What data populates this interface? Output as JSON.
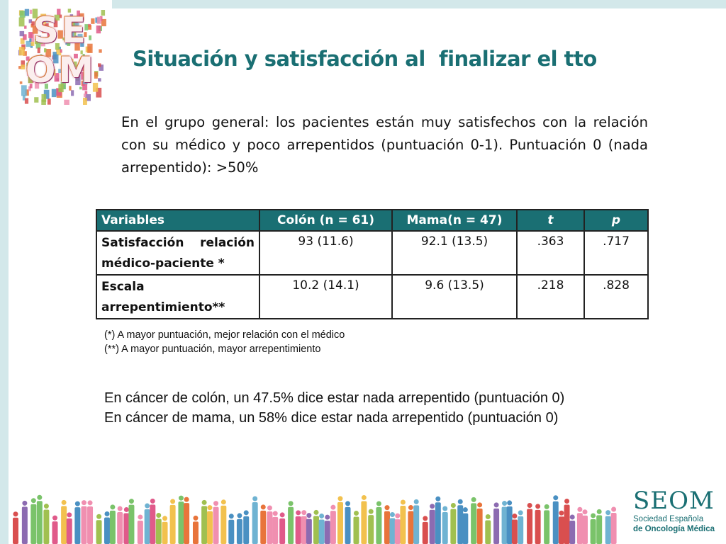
{
  "slide": {
    "title": "Situación y satisfacción al  finalizar el tto",
    "intro": "En el grupo general: los pacientes están muy satisfechos con la relación con su médico y poco arrepentidos (puntuación 0-1). Puntuación 0 (nada arrepentido): >50%"
  },
  "logo_top": {
    "text_line1": "SE",
    "text_line2": "OM"
  },
  "table": {
    "headers": [
      "Variables",
      "Colón (n = 61)",
      "Mama(n = 47)",
      "t",
      "p"
    ],
    "rows": [
      {
        "label": "Satisfacción relación médico-paciente *",
        "colon": "93  (11.6)",
        "mama": "92.1 (13.5)",
        "t": ".363",
        "p": ".717"
      },
      {
        "label": "Escala arrepentimiento**",
        "colon": "10.2 (14.1)",
        "mama": "9.6 (13.5)",
        "t": ".218",
        "p": ".828"
      }
    ]
  },
  "footnotes": [
    "(*) A mayor puntuación, mejor relación con el médico",
    "(**) A mayor puntuación, mayor arrepentimiento"
  ],
  "summary": [
    "En cáncer de colón, un 47.5% dice estar nada arrepentido (puntuación 0)",
    "En cáncer de mama, un 58% dice estar nada arrepentido (puntuación 0)"
  ],
  "logo_bottom": {
    "word": "SEOM",
    "line1": "Sociedad Española",
    "line2": "de Oncología Médica"
  },
  "colors": {
    "accent": "#1a6f73",
    "band": "#d3e8ea",
    "people": [
      "#e05a8a",
      "#6fb3d2",
      "#f2c14e",
      "#8c6bb1",
      "#e8743b",
      "#7ac36a",
      "#d94f4f",
      "#4a90c2",
      "#f08fb0",
      "#a0c050"
    ]
  }
}
